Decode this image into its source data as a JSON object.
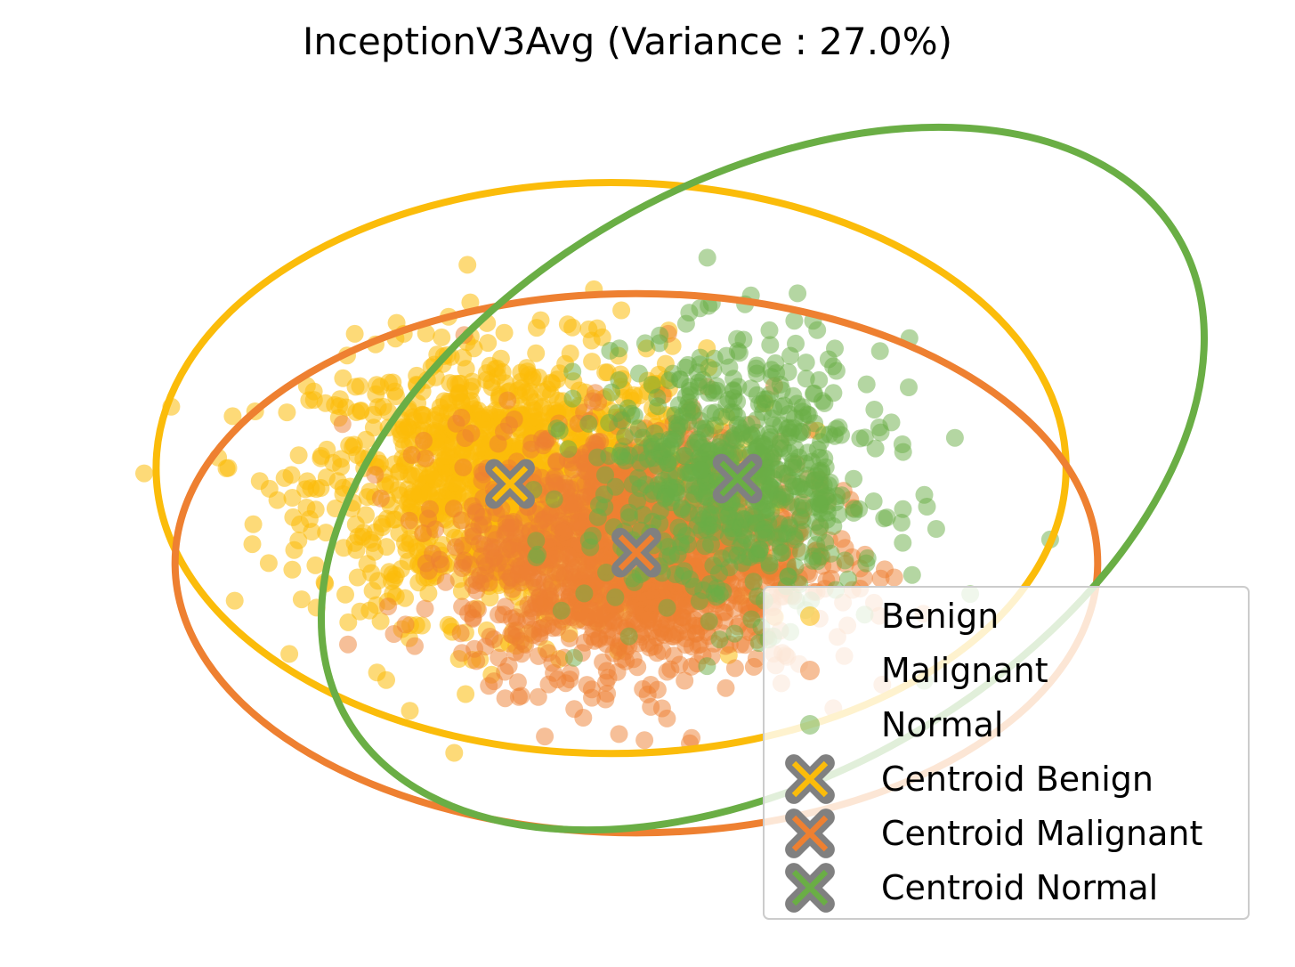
{
  "chart_data": {
    "type": "scatter",
    "title": "InceptionV3Avg (Variance : 27.0%)",
    "xlabel": "",
    "ylabel": "",
    "axes_visible": false,
    "xlim": [
      -10,
      10
    ],
    "ylim": [
      -8,
      8
    ],
    "grid": false,
    "legend_position": "lower-right",
    "series": [
      {
        "name": "Benign",
        "color": "#FBBC0A",
        "marker": "circle",
        "alpha": 0.55,
        "centroid": [
          -2.0,
          0.7
        ],
        "spread": [
          2.8,
          2.3
        ],
        "count": 1300
      },
      {
        "name": "Malignant",
        "color": "#EE8031",
        "marker": "circle",
        "alpha": 0.5,
        "centroid": [
          0.0,
          -0.6
        ],
        "spread": [
          2.5,
          2.1
        ],
        "count": 1500
      },
      {
        "name": "Normal",
        "color": "#6AAE45",
        "marker": "circle",
        "alpha": 0.5,
        "centroid": [
          1.6,
          0.8
        ],
        "spread": [
          2.1,
          2.3
        ],
        "count": 650
      }
    ],
    "centroids": [
      {
        "name": "Centroid Benign",
        "x": -2.0,
        "y": 0.7,
        "color": "#FBBC0A",
        "edgecolor": "#808080",
        "marker": "x"
      },
      {
        "name": "Centroid Malignant",
        "x": 0.0,
        "y": -0.6,
        "color": "#EE8031",
        "edgecolor": "#808080",
        "marker": "x"
      },
      {
        "name": "Centroid Normal",
        "x": 1.6,
        "y": 0.8,
        "color": "#6AAE45",
        "edgecolor": "#808080",
        "marker": "x"
      }
    ],
    "ellipses": [
      {
        "series": "Benign",
        "color": "#FBBC0A",
        "cx": -0.4,
        "cy": 1.0,
        "rx": 7.2,
        "ry": 5.4,
        "angle": 0
      },
      {
        "series": "Malignant",
        "color": "#EE8031",
        "cx": 0.0,
        "cy": -0.8,
        "rx": 7.3,
        "ry": 5.1,
        "angle": 0
      },
      {
        "series": "Normal",
        "color": "#6AAE45",
        "cx": 2.0,
        "cy": 0.8,
        "rx": 7.6,
        "ry": 5.6,
        "angle": -30
      }
    ]
  }
}
